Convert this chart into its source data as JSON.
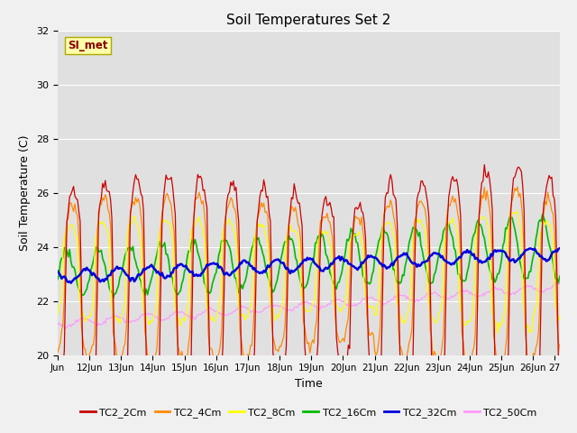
{
  "title": "Soil Temperatures Set 2",
  "xlabel": "Time",
  "ylabel": "Soil Temperature (C)",
  "ylim": [
    20,
    32
  ],
  "annotation": "SI_met",
  "series_colors": {
    "TC2_2Cm": "#cc0000",
    "TC2_4Cm": "#ff8800",
    "TC2_8Cm": "#ffff00",
    "TC2_16Cm": "#00bb00",
    "TC2_32Cm": "#0000dd",
    "TC2_50Cm": "#ff99ff"
  },
  "tick_labels": [
    "Jun",
    "12Jun",
    "13Jun",
    "14Jun",
    "15Jun",
    "16Jun",
    "17Jun",
    "18Jun",
    "19Jun",
    "20Jun",
    "21Jun",
    "22Jun",
    "23Jun",
    "24Jun",
    "25Jun",
    "26Jun",
    "27"
  ],
  "tick_positions": [
    0,
    24,
    48,
    72,
    96,
    120,
    144,
    168,
    192,
    216,
    240,
    264,
    288,
    312,
    336,
    360,
    376
  ],
  "yticks": [
    20,
    22,
    24,
    26,
    28,
    30,
    32
  ],
  "fig_width": 6.4,
  "fig_height": 4.8,
  "dpi": 100
}
